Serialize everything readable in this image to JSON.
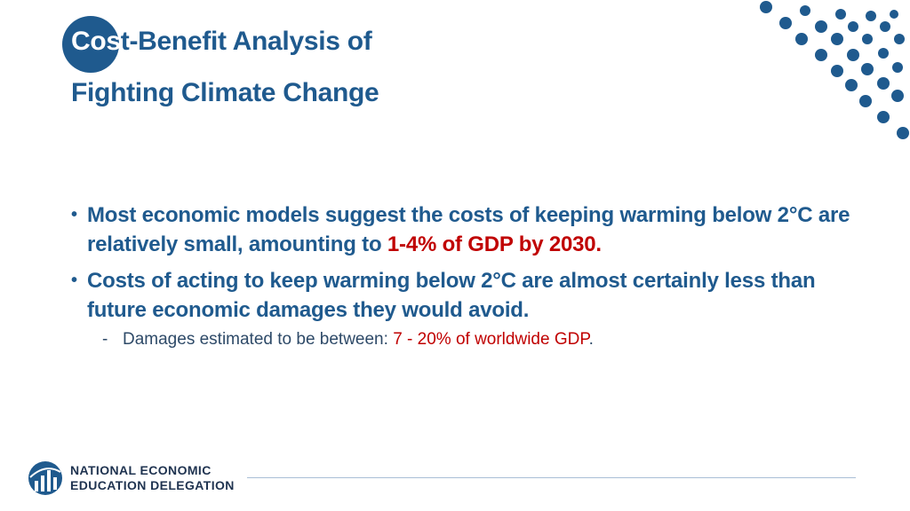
{
  "slide": {
    "title_line1_part_a": "Cos",
    "title_line1_part_b": "t-Benefit Analysis of",
    "title_line2": "Fighting Climate Change"
  },
  "bullets": [
    {
      "text_before": "Most economic models suggest the costs of keeping warming below 2°C are relatively small, amounting to ",
      "highlight": "1-4% of GDP by 2030.",
      "text_after": ""
    },
    {
      "text": "Costs of acting to keep warming below 2°C are almost certainly less than future economic damages they would avoid."
    }
  ],
  "sub_bullet": {
    "marker": "-",
    "text_before": "Damages estimated to be between: ",
    "highlight": "7 - 20% of worldwide GDP",
    "text_after": "."
  },
  "bullet_marker": "•",
  "footer": {
    "logo_line1": "NATIONAL ECONOMIC",
    "logo_line2": "EDUCATION DELEGATION"
  },
  "colors": {
    "primary_blue": "#1f5a8e",
    "highlight_red": "#c00000",
    "logo_navy": "#1f3350"
  },
  "icons": {
    "logo": "globe-columns-icon",
    "decor": "dot-pattern-decoration"
  }
}
